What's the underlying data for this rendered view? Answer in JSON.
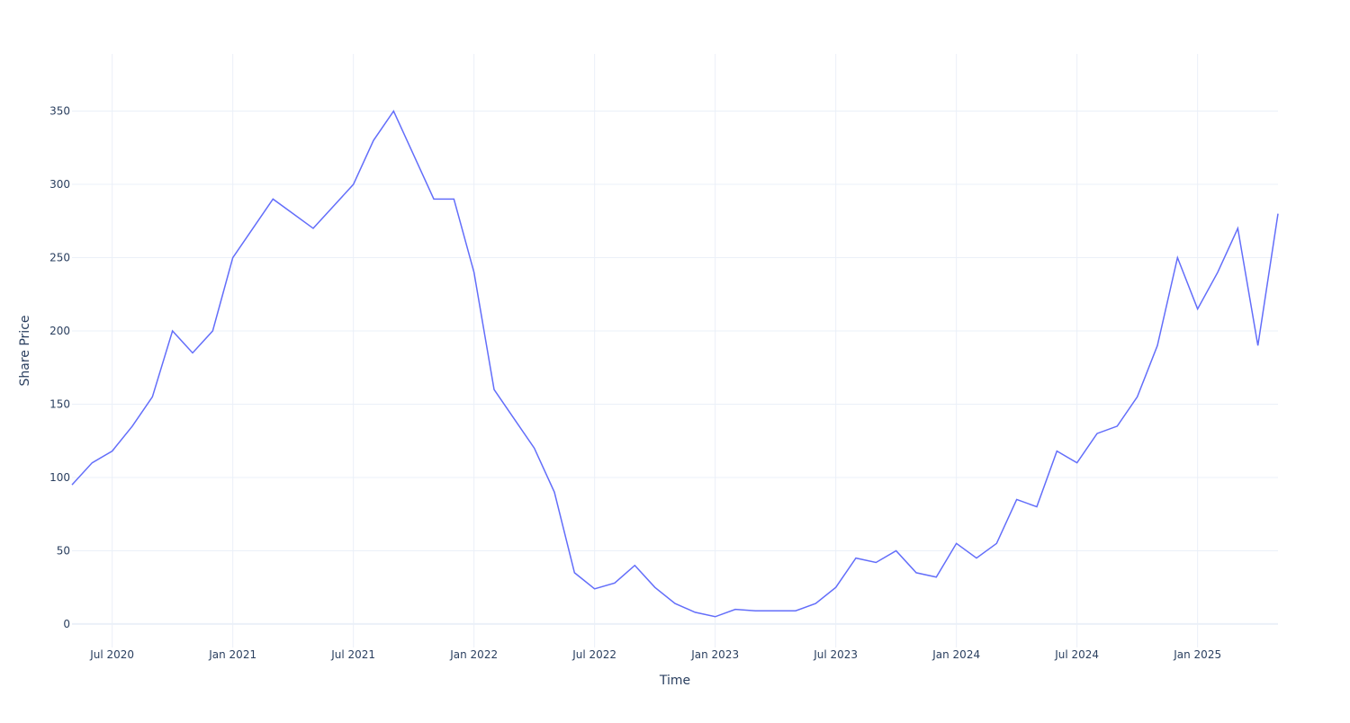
{
  "chart_data": {
    "type": "line",
    "x_label": "Time",
    "y_label": "Share Price",
    "x": [
      "2020-05",
      "2020-06",
      "2020-07",
      "2020-08",
      "2020-09",
      "2020-10",
      "2020-11",
      "2020-12",
      "2021-01",
      "2021-02",
      "2021-03",
      "2021-04",
      "2021-05",
      "2021-06",
      "2021-07",
      "2021-08",
      "2021-09",
      "2021-10",
      "2021-11",
      "2021-12",
      "2022-01",
      "2022-02",
      "2022-03",
      "2022-04",
      "2022-05",
      "2022-06",
      "2022-07",
      "2022-08",
      "2022-09",
      "2022-10",
      "2022-11",
      "2022-12",
      "2023-01",
      "2023-02",
      "2023-03",
      "2023-04",
      "2023-05",
      "2023-06",
      "2023-07",
      "2023-08",
      "2023-09",
      "2023-10",
      "2023-11",
      "2023-12",
      "2024-01",
      "2024-02",
      "2024-03",
      "2024-04",
      "2024-05",
      "2024-06",
      "2024-07",
      "2024-08",
      "2024-09",
      "2024-10",
      "2024-11",
      "2024-12",
      "2025-01",
      "2025-02",
      "2025-03",
      "2025-04",
      "2025-05"
    ],
    "series": [
      {
        "color": "#636efa",
        "values": [
          95,
          110,
          118,
          135,
          155,
          200,
          185,
          200,
          250,
          270,
          290,
          280,
          270,
          285,
          300,
          330,
          350,
          320,
          290,
          290,
          240,
          160,
          140,
          120,
          90,
          35,
          24,
          28,
          40,
          25,
          14,
          8,
          5,
          10,
          9,
          9,
          9,
          14,
          25,
          45,
          42,
          50,
          35,
          32,
          55,
          45,
          55,
          85,
          80,
          118,
          110,
          130,
          135,
          155,
          190,
          250,
          215,
          240,
          270,
          190,
          280
        ]
      }
    ],
    "xlim": [
      "2020-05",
      "2025-05"
    ],
    "xticks": [
      {
        "value": "2020-07",
        "label": "Jul 2020"
      },
      {
        "value": "2021-01",
        "label": "Jan 2021"
      },
      {
        "value": "2021-07",
        "label": "Jul 2021"
      },
      {
        "value": "2022-01",
        "label": "Jan 2022"
      },
      {
        "value": "2022-07",
        "label": "Jul 2022"
      },
      {
        "value": "2023-01",
        "label": "Jan 2023"
      },
      {
        "value": "2023-07",
        "label": "Jul 2023"
      },
      {
        "value": "2024-01",
        "label": "Jan 2024"
      },
      {
        "value": "2024-07",
        "label": "Jul 2024"
      },
      {
        "value": "2025-01",
        "label": "Jan 2025"
      }
    ],
    "ylim": [
      -16,
      389
    ],
    "yticks": [
      0,
      50,
      100,
      150,
      200,
      250,
      300,
      350
    ],
    "grid": true
  }
}
